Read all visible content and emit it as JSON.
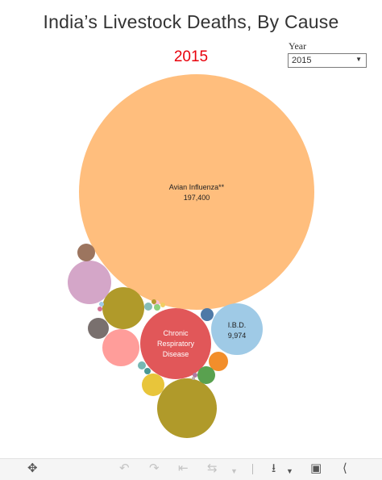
{
  "header": {
    "title": "India’s Livestock Deaths, By Cause",
    "year_display": "2015"
  },
  "filter": {
    "label": "Year",
    "selected": "2015"
  },
  "chart_data": {
    "type": "bubble",
    "bubbles": [
      {
        "name": "Avian Influenza**",
        "value": 197400,
        "value_label": "197,400",
        "color": "#ffbe7d",
        "labeled": true
      },
      {
        "name": "Chronic Respiratory Disease",
        "color": "#e15759",
        "labeled": true
      },
      {
        "name": "I.B.D.",
        "value": 9974,
        "value_label": "9,974",
        "color": "#9fcae6",
        "labeled": true
      },
      {
        "color": "#b09a2a",
        "labeled": false
      },
      {
        "color": "#b09a2a",
        "labeled": false
      },
      {
        "color": "#d4a6c8",
        "labeled": false
      },
      {
        "color": "#ff9d9a",
        "labeled": false
      },
      {
        "color": "#9c755f",
        "labeled": false
      },
      {
        "color": "#79706e",
        "labeled": false
      },
      {
        "color": "#e8c53a",
        "labeled": false
      },
      {
        "color": "#f28e2b",
        "labeled": false
      },
      {
        "color": "#59a14f",
        "labeled": false
      },
      {
        "color": "#4e79a7",
        "labeled": false
      },
      {
        "color": "#76b7b2",
        "labeled": false
      },
      {
        "color": "#499894",
        "labeled": false
      },
      {
        "color": "#86bcb6",
        "labeled": false
      },
      {
        "color": "#fabfd2",
        "labeled": false
      },
      {
        "color": "#8cd17d",
        "labeled": false
      },
      {
        "color": "#f1ce63",
        "labeled": false
      },
      {
        "color": "#b6992d",
        "labeled": false
      },
      {
        "color": "#d37295",
        "labeled": false
      },
      {
        "color": "#a0cbe8",
        "labeled": false
      },
      {
        "color": "#b07aa1",
        "labeled": false
      },
      {
        "color": "#bab0ac",
        "labeled": false
      }
    ]
  },
  "toolbar": {
    "icons": [
      "move-icon",
      "undo-icon",
      "redo-icon",
      "revert-icon",
      "refresh-icon",
      "dropdown-icon",
      "download-icon",
      "fullscreen-icon",
      "share-icon"
    ]
  }
}
